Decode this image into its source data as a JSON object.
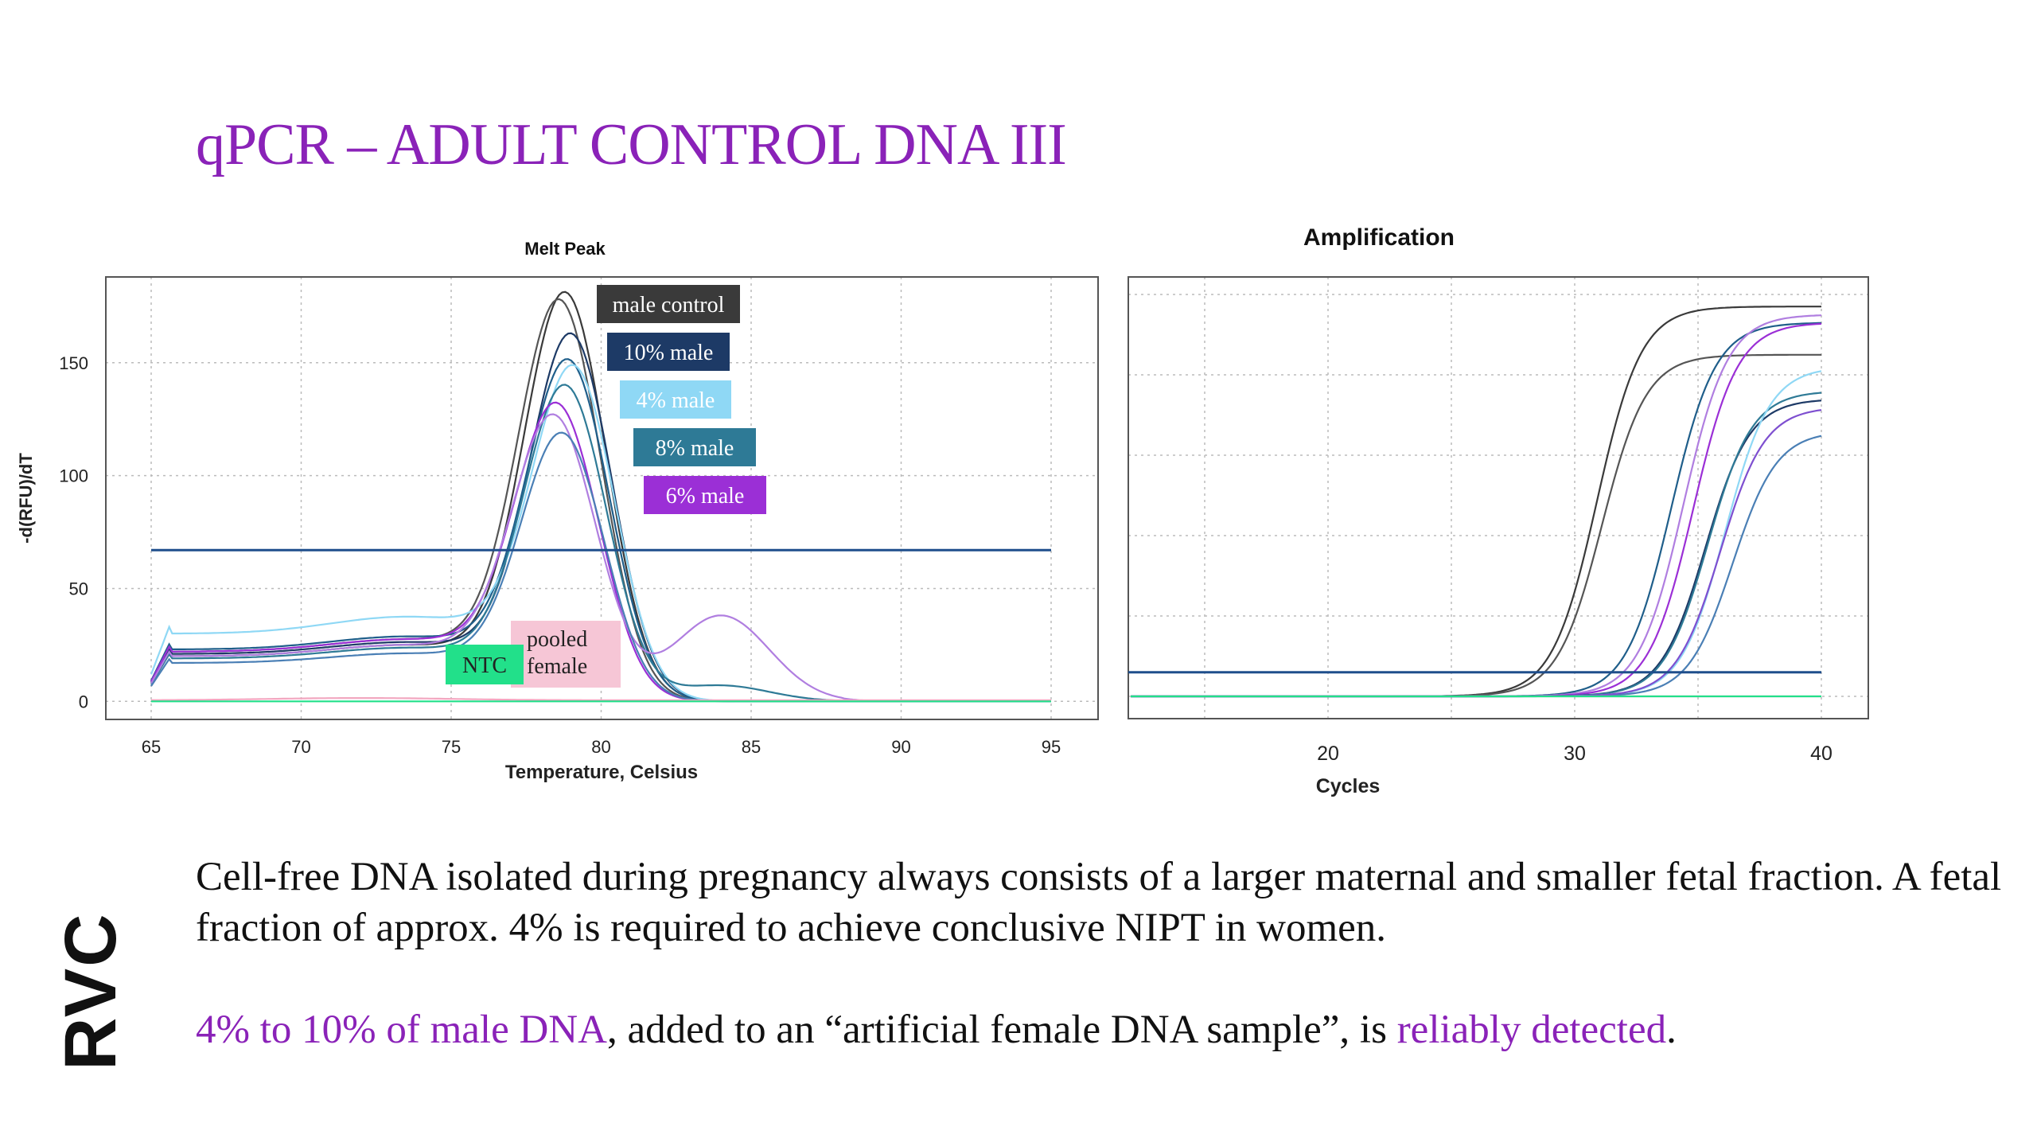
{
  "slide": {
    "title": "qPCR – ADULT CONTROL DNA III",
    "paragraph1": "Cell-free DNA isolated during pregnancy always consists of a larger maternal and smaller fetal fraction. A fetal fraction of approx. 4% is required to achieve conclusive NIPT in women.",
    "paragraph2_highlight1": "4% to 10% of male DNA",
    "paragraph2_middle": ", added to an “artificial female DNA sample”, is ",
    "paragraph2_highlight2": "reliably detected",
    "paragraph2_end": ".",
    "logo": "RVC",
    "accent_color": "#8a22b8"
  },
  "chart_data": [
    {
      "type": "line",
      "title": "Melt Peak",
      "xlabel": "Temperature, Celsius",
      "ylabel": "-d(RFU)/dT",
      "xlim": [
        65,
        95
      ],
      "ylim": [
        -8,
        188
      ],
      "xticks": [
        65,
        70,
        75,
        80,
        85,
        90,
        95
      ],
      "yticks": [
        0,
        50,
        100,
        150
      ],
      "grid": true,
      "threshold": 67,
      "threshold_color": "#1f4e8c",
      "legend_labels": [
        {
          "text": "male control",
          "bg": "#3a3a3a",
          "fg": "#ffffff"
        },
        {
          "text": "10% male",
          "bg": "#1d3a66",
          "fg": "#ffffff"
        },
        {
          "text": "4% male",
          "bg": "#8fd8f5",
          "fg": "#ffffff"
        },
        {
          "text": "8% male",
          "bg": "#2e7a96",
          "fg": "#ffffff"
        },
        {
          "text": "6% male",
          "bg": "#9b2fd6",
          "fg": "#ffffff"
        },
        {
          "text": "pooled",
          "text2": "female",
          "bg": "#f6c6d6",
          "fg": "#222222"
        },
        {
          "text": "NTC",
          "bg": "#22e08a",
          "fg": "#222222"
        }
      ],
      "series": [
        {
          "color": "#3a3a3a",
          "peak": 178,
          "center": 78.8,
          "base": 20,
          "shoulder": 0
        },
        {
          "color": "#555555",
          "peak": 174,
          "center": 78.6,
          "base": 22,
          "shoulder": 0
        },
        {
          "color": "#1d3a66",
          "peak": 160,
          "center": 79.0,
          "base": 21,
          "shoulder": 0
        },
        {
          "color": "#1f5e8a",
          "peak": 148,
          "center": 78.9,
          "base": 23,
          "shoulder": 0
        },
        {
          "color": "#8fd8f5",
          "peak": 145,
          "center": 79.1,
          "base": 30,
          "shoulder": 0
        },
        {
          "color": "#2e7a96",
          "peak": 137,
          "center": 78.8,
          "base": 19,
          "shoulder": 7
        },
        {
          "color": "#9b2fd6",
          "peak": 128,
          "center": 78.5,
          "base": 22,
          "shoulder": 0
        },
        {
          "color": "#b07ee0",
          "peak": 123,
          "center": 78.4,
          "base": 20,
          "shoulder": 38
        },
        {
          "color": "#4a7fb5",
          "peak": 116,
          "center": 78.7,
          "base": 17,
          "shoulder": 0
        },
        {
          "color": "#f2a8c0",
          "peak": 1,
          "center": 72,
          "base": 1,
          "shoulder": 0
        },
        {
          "color": "#22e08a",
          "peak": 0,
          "center": 80,
          "base": 0,
          "shoulder": 0
        }
      ]
    },
    {
      "type": "line",
      "title": "Amplification",
      "xlabel": "Cycles",
      "ylabel": "",
      "xlim": [
        12,
        42
      ],
      "ylim": [
        0,
        100
      ],
      "xticks": [
        20,
        30,
        40
      ],
      "grid": true,
      "threshold": 6,
      "threshold_color": "#1f4e8c",
      "series": [
        {
          "color": "#3a3a3a",
          "ct": 30.9,
          "plateau": 97
        },
        {
          "color": "#555555",
          "ct": 31.1,
          "plateau": 85
        },
        {
          "color": "#1f5e8a",
          "ct": 33.9,
          "plateau": 93
        },
        {
          "color": "#b07ee0",
          "ct": 34.4,
          "plateau": 95
        },
        {
          "color": "#9b2fd6",
          "ct": 34.8,
          "plateau": 93
        },
        {
          "color": "#1d3a66",
          "ct": 35.3,
          "plateau": 74
        },
        {
          "color": "#2e7a96",
          "ct": 35.4,
          "plateau": 76
        },
        {
          "color": "#8fd8f5",
          "ct": 36.1,
          "plateau": 82
        },
        {
          "color": "#4a7fb5",
          "ct": 36.4,
          "plateau": 66
        },
        {
          "color": "#7e4fd0",
          "ct": 35.9,
          "plateau": 72
        },
        {
          "color": "#f2a8c0",
          "ct": 60,
          "plateau": 1
        },
        {
          "color": "#22e08a",
          "ct": 60,
          "plateau": 1
        }
      ]
    }
  ]
}
